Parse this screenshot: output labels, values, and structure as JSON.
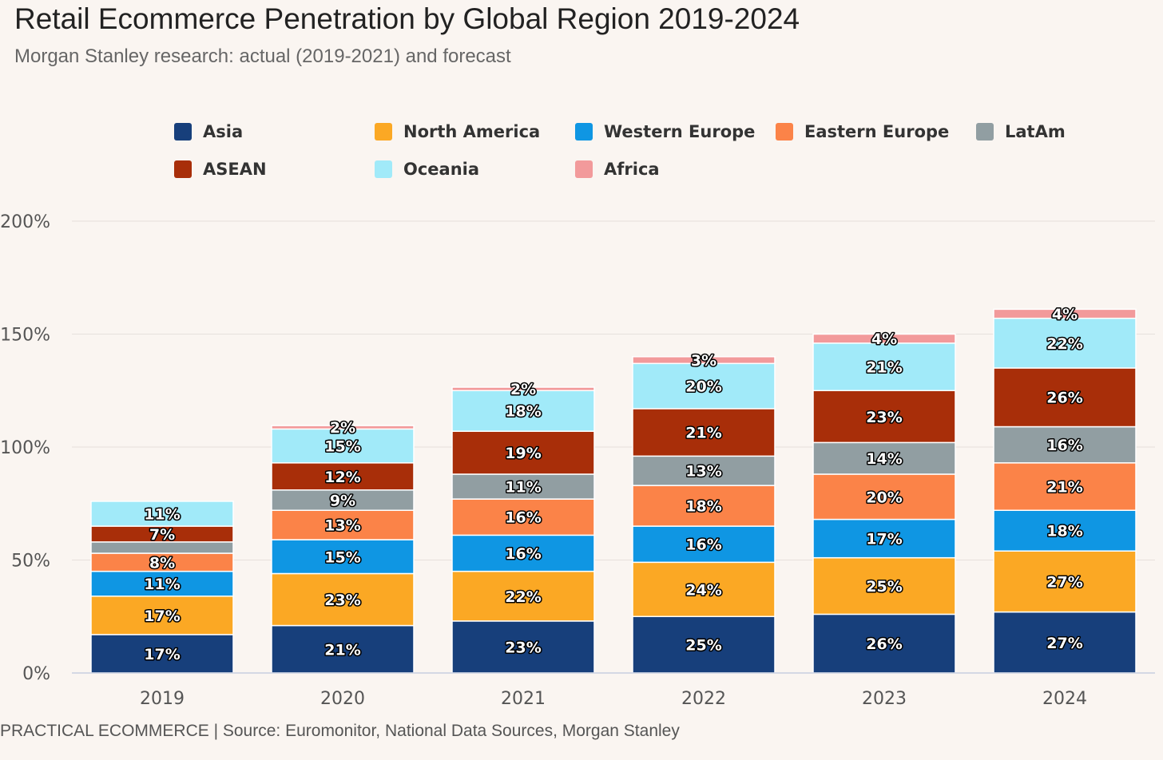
{
  "chart_data": {
    "type": "bar",
    "stacked": true,
    "title": "Retail Ecommerce Penetration by Global Region 2019-2024",
    "subtitle": "Morgan Stanley research: actual (2019-2021) and forecast",
    "source": "PRACTICAL ECOMMERCE | Source: Euromonitor, National Data Sources, Morgan Stanley",
    "categories": [
      "2019",
      "2020",
      "2021",
      "2022",
      "2023",
      "2024"
    ],
    "ylim": [
      0,
      200
    ],
    "yticks": [
      0,
      50,
      100,
      150,
      200
    ],
    "ytick_labels": [
      "0%",
      "50%",
      "100%",
      "150%",
      "200%"
    ],
    "grid": true,
    "legend_position": "top",
    "series": [
      {
        "name": "Asia",
        "color": "#173f7b",
        "values": [
          17,
          21,
          23,
          25,
          26,
          27
        ],
        "labels": [
          "17%",
          "21%",
          "23%",
          "25%",
          "26%",
          "27%"
        ]
      },
      {
        "name": "North America",
        "color": "#fba824",
        "values": [
          17,
          23,
          22,
          24,
          25,
          27
        ],
        "labels": [
          "17%",
          "23%",
          "22%",
          "24%",
          "25%",
          "27%"
        ]
      },
      {
        "name": "Western Europe",
        "color": "#0f96e3",
        "values": [
          11,
          15,
          16,
          16,
          17,
          18
        ],
        "labels": [
          "11%",
          "15%",
          "16%",
          "16%",
          "17%",
          "18%"
        ]
      },
      {
        "name": "Eastern Europe",
        "color": "#fb8348",
        "values": [
          8,
          13,
          16,
          18,
          20,
          21
        ],
        "labels": [
          "8%",
          "13%",
          "16%",
          "18%",
          "20%",
          "21%"
        ]
      },
      {
        "name": "LatAm",
        "color": "#919ea2",
        "values": [
          5,
          9,
          11,
          13,
          14,
          16
        ],
        "labels": [
          "",
          "9%",
          "11%",
          "13%",
          "14%",
          "16%"
        ]
      },
      {
        "name": "ASEAN",
        "color": "#a82e09",
        "values": [
          7,
          12,
          19,
          21,
          23,
          26
        ],
        "labels": [
          "7%",
          "12%",
          "19%",
          "21%",
          "23%",
          "26%"
        ]
      },
      {
        "name": "Oceania",
        "color": "#a1eaf9",
        "values": [
          11,
          15,
          18,
          20,
          21,
          22
        ],
        "labels": [
          "11%",
          "15%",
          "18%",
          "20%",
          "21%",
          "22%"
        ]
      },
      {
        "name": "Africa",
        "color": "#f29a9b",
        "values": [
          0,
          1.5,
          1.5,
          3,
          4,
          4
        ],
        "labels": [
          "",
          "2%",
          "2%",
          "3%",
          "4%",
          "4%"
        ]
      }
    ]
  }
}
